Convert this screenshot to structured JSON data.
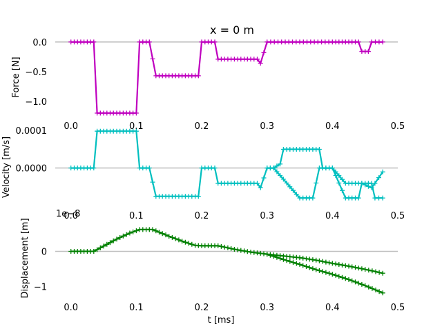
{
  "chart_data": [
    {
      "type": "line",
      "title": "x = 0 m",
      "xlabel": "",
      "ylabel": "Force [N]",
      "xlim": [
        -0.024,
        0.5
      ],
      "ylim": [
        -1.27,
        0.08
      ],
      "xticks": [
        0.0,
        0.1,
        0.2,
        0.3,
        0.4,
        0.5
      ],
      "xtick_labels": [
        "0.0",
        "0.1",
        "0.2",
        "0.3",
        "0.4",
        "0.5"
      ],
      "yticks": [
        0.0,
        -0.5,
        -1.0
      ],
      "ytick_labels": [
        "0.0",
        "−0.5",
        "−1.0"
      ],
      "grid": false,
      "zero_line": true,
      "series": [
        {
          "color": "#bf00bf",
          "marker": "plus",
          "x": [
            0,
            0.02,
            0.035,
            0.04,
            0.07,
            0.1,
            0.105,
            0.12,
            0.13,
            0.16,
            0.195,
            0.2,
            0.22,
            0.225,
            0.26,
            0.285,
            0.29,
            0.3,
            0.35,
            0.4,
            0.44,
            0.445,
            0.455,
            0.46,
            0.477
          ],
          "values": [
            0,
            0,
            0,
            -1.2,
            -1.2,
            -1.2,
            0,
            0,
            -0.57,
            -0.57,
            -0.57,
            0,
            0,
            -0.29,
            -0.29,
            -0.29,
            -0.36,
            0,
            0,
            0,
            0,
            -0.16,
            -0.16,
            0,
            0
          ]
        }
      ]
    },
    {
      "type": "line",
      "title": "",
      "xlabel": "",
      "ylabel": "Velocity [m/s]",
      "xlim": [
        -0.024,
        0.5
      ],
      "ylim": [
        -0.000103,
        0.000107
      ],
      "xticks": [
        0.0,
        0.1,
        0.2,
        0.3,
        0.4,
        0.5
      ],
      "xtick_labels": [
        "0.0",
        "0.1",
        "0.2",
        "0.3",
        "0.4",
        "0.5"
      ],
      "yticks": [
        0.0001,
        0.0
      ],
      "ytick_labels": [
        "0.0001",
        "0.0000"
      ],
      "grid": false,
      "zero_line": true,
      "series": [
        {
          "color": "#00bfbf",
          "marker": "plus",
          "x": [
            0,
            0.02,
            0.035,
            0.04,
            0.07,
            0.1,
            0.105,
            0.12,
            0.13,
            0.16,
            0.195,
            0.2,
            0.22,
            0.225,
            0.26,
            0.285,
            0.29,
            0.3,
            0.31,
            0.35,
            0.37,
            0.38,
            0.4,
            0.42,
            0.44,
            0.445,
            0.46,
            0.465,
            0.477
          ],
          "values": [
            0,
            0,
            0,
            9.75e-05,
            9.75e-05,
            9.75e-05,
            0,
            0,
            -7.5e-05,
            -7.5e-05,
            -7.5e-05,
            0,
            0,
            -4.05e-05,
            -4.05e-05,
            -4.05e-05,
            -5.25e-05,
            0,
            0,
            -7.95e-05,
            -7.95e-05,
            0,
            0,
            -7.95e-05,
            -7.95e-05,
            -4.05e-05,
            -4.05e-05,
            -7.95e-05,
            -7.95e-05
          ]
        },
        {
          "color": "#00bfbf",
          "marker": "plus",
          "x": [
            0.3,
            0.31,
            0.32,
            0.325,
            0.35,
            0.37,
            0.38,
            0.385,
            0.4,
            0.42,
            0.44,
            0.445,
            0.46,
            0.465,
            0.477
          ],
          "values": [
            0,
            0,
            1.05e-05,
            4.95e-05,
            4.95e-05,
            4.95e-05,
            4.95e-05,
            0,
            0,
            -4.05e-05,
            -4.05e-05,
            -4.05e-05,
            -5.25e-05,
            -4.05e-05,
            -1.05e-05
          ]
        }
      ]
    },
    {
      "type": "line",
      "title": "",
      "xlabel": "t [ms]",
      "ylabel": "Displacement [m]",
      "offset_text": "1e−8",
      "xlim": [
        -0.024,
        0.5
      ],
      "ylim": [
        -1.34,
        0.95
      ],
      "xticks": [
        0.0,
        0.1,
        0.2,
        0.3,
        0.4,
        0.5
      ],
      "xtick_labels": [
        "0.0",
        "0.1",
        "0.2",
        "0.3",
        "0.4",
        "0.5"
      ],
      "yticks": [
        0,
        -1
      ],
      "ytick_labels": [
        "0",
        "−1"
      ],
      "grid": false,
      "zero_line": true,
      "series": [
        {
          "color": "#008000",
          "marker": "plus",
          "x": [
            0,
            0.035,
            0.05,
            0.07,
            0.09,
            0.105,
            0.125,
            0.15,
            0.17,
            0.19,
            0.2,
            0.225,
            0.25,
            0.275,
            0.3,
            0.33,
            0.35,
            0.375,
            0.4,
            0.425,
            0.45,
            0.477
          ],
          "values": [
            0,
            0,
            0.15,
            0.35,
            0.52,
            0.62,
            0.62,
            0.43,
            0.29,
            0.17,
            0.16,
            0.16,
            0.06,
            -0.02,
            -0.08,
            -0.14,
            -0.18,
            -0.25,
            -0.34,
            -0.42,
            -0.51,
            -0.62
          ]
        },
        {
          "color": "#008000",
          "marker": "plus",
          "x": [
            0.3,
            0.325,
            0.35,
            0.375,
            0.4,
            0.425,
            0.45,
            0.477
          ],
          "values": [
            -0.08,
            -0.23,
            -0.37,
            -0.52,
            -0.65,
            -0.8,
            -0.97,
            -1.18
          ]
        }
      ]
    }
  ]
}
